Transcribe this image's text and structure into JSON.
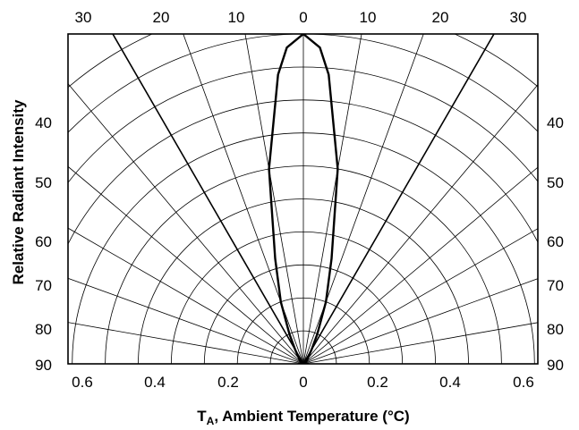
{
  "chart_data": {
    "type": "polar-radiation-pattern",
    "title": "",
    "xlabel": "T",
    "xlabel_sub": "A",
    "xlabel_rest": ", Ambient Temperature (°C)",
    "ylabel": "Relative Radiant Intensity",
    "grid": true,
    "top_angle_labels": [
      "30",
      "20",
      "10",
      "0",
      "10",
      "20",
      "30"
    ],
    "side_angle_labels": [
      "40",
      "50",
      "60",
      "70",
      "80",
      "90"
    ],
    "bottom_ticks": [
      "0.6",
      "0.4",
      "0.2",
      "0",
      "0.2",
      "0.4",
      "0.6"
    ],
    "angles_deg": [
      0,
      10,
      20,
      30,
      40,
      50,
      60,
      70,
      80,
      90
    ],
    "angle_values": [
      0,
      10,
      20,
      30,
      40,
      50,
      60,
      70,
      80,
      90
    ],
    "radial_rings": [
      0.1,
      0.2,
      0.3,
      0.4,
      0.5,
      0.6,
      0.7,
      0.8,
      0.9,
      1.0,
      1.1
    ],
    "series": [
      {
        "angles": [
          -90,
          -60,
          -45,
          -30,
          -25,
          -20,
          -15,
          -10,
          -5,
          -3,
          0,
          3,
          5,
          10,
          15,
          20,
          25,
          30,
          45,
          60,
          90
        ],
        "values": [
          0,
          0.005,
          0.015,
          0.05,
          0.1,
          0.2,
          0.33,
          0.6,
          0.88,
          0.96,
          1.0,
          0.96,
          0.88,
          0.6,
          0.33,
          0.2,
          0.1,
          0.05,
          0.015,
          0.005,
          0
        ]
      }
    ]
  }
}
